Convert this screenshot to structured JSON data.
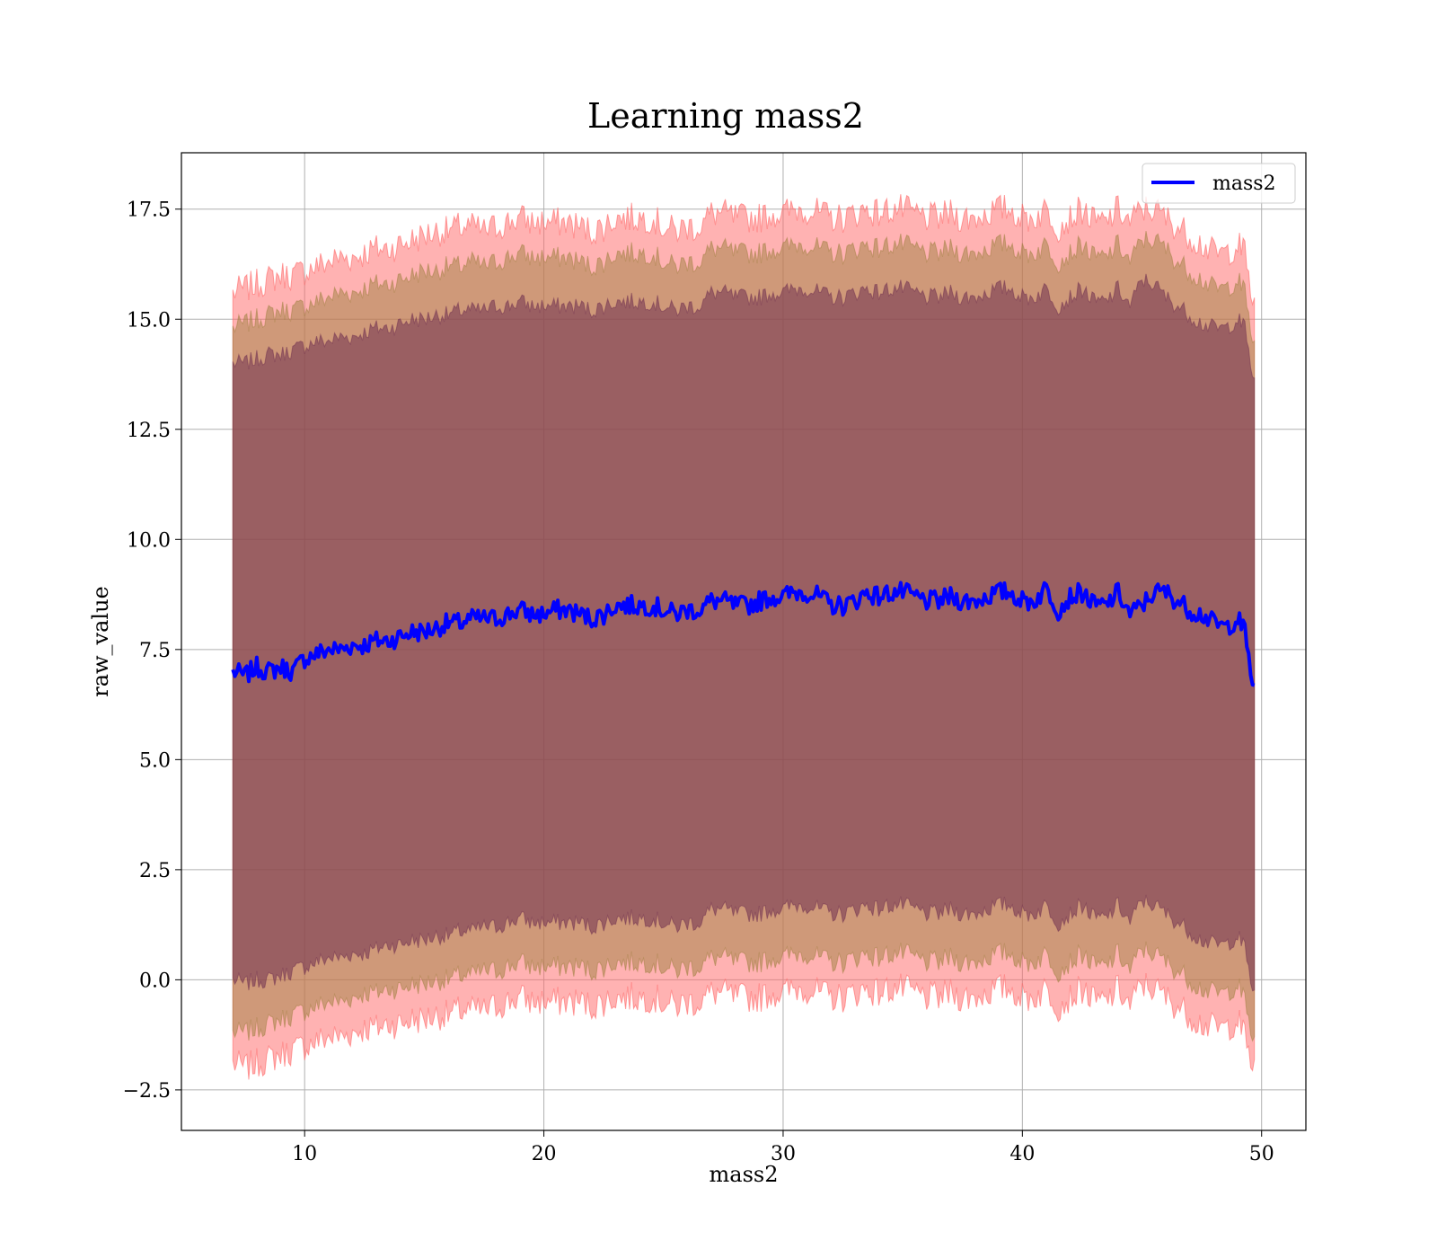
{
  "chart_data": {
    "type": "area",
    "title": "Learning mass2",
    "xlabel": "mass2",
    "ylabel": "raw_value",
    "xlim": [
      4.85,
      51.85
    ],
    "ylim": [
      -3.42,
      18.78
    ],
    "xticks": [
      10,
      20,
      30,
      40,
      50
    ],
    "xtick_labels": [
      "10",
      "20",
      "30",
      "40",
      "50"
    ],
    "yticks": [
      -2.5,
      0.0,
      2.5,
      5.0,
      7.5,
      10.0,
      12.5,
      15.0,
      17.5
    ],
    "ytick_labels": [
      "−2.5",
      "0.0",
      "2.5",
      "5.0",
      "7.5",
      "10.0",
      "12.5",
      "15.0",
      "17.5"
    ],
    "grid": true,
    "legend": {
      "position": "top-right",
      "entries": [
        "mass2"
      ]
    },
    "colors": {
      "mean_line": "#0000ff",
      "band_outer": "#ff6666",
      "band_middle": "#a08040",
      "band_inner": "#703050"
    },
    "series": [
      {
        "name": "mass2",
        "x": [
          7.0,
          7.5,
          8.0,
          8.5,
          9.0,
          9.5,
          10.0,
          10.5,
          11.0,
          11.5,
          12.0,
          12.5,
          13.0,
          13.5,
          14.0,
          14.5,
          15.0,
          15.5,
          16.0,
          16.5,
          17.0,
          17.5,
          18.0,
          18.5,
          19.0,
          19.5,
          20.0,
          20.5,
          21.0,
          21.5,
          22.0,
          22.5,
          23.0,
          23.5,
          24.0,
          24.5,
          25.0,
          25.5,
          26.0,
          26.5,
          27.0,
          27.5,
          28.0,
          28.5,
          29.0,
          29.5,
          30.0,
          30.5,
          31.0,
          31.5,
          32.0,
          32.5,
          33.0,
          33.5,
          34.0,
          34.5,
          35.0,
          35.5,
          36.0,
          36.5,
          37.0,
          37.5,
          38.0,
          38.5,
          39.0,
          39.5,
          40.0,
          40.5,
          41.0,
          41.5,
          42.0,
          42.5,
          43.0,
          43.5,
          44.0,
          44.5,
          45.0,
          45.5,
          46.0,
          46.5,
          47.0,
          47.5,
          48.0,
          48.5,
          49.0,
          49.3,
          49.7
        ],
        "mean": [
          7.0,
          6.9,
          7.1,
          7.0,
          7.1,
          7.0,
          7.3,
          7.4,
          7.5,
          7.5,
          7.6,
          7.6,
          7.7,
          7.7,
          7.8,
          7.9,
          7.9,
          8.0,
          8.1,
          8.1,
          8.2,
          8.2,
          8.2,
          8.3,
          8.4,
          8.3,
          8.3,
          8.4,
          8.4,
          8.3,
          8.2,
          8.3,
          8.5,
          8.5,
          8.5,
          8.5,
          8.4,
          8.3,
          8.4,
          8.4,
          8.6,
          8.6,
          8.5,
          8.5,
          8.6,
          8.7,
          8.7,
          8.8,
          8.8,
          8.7,
          8.5,
          8.5,
          8.6,
          8.8,
          8.7,
          8.8,
          8.8,
          8.7,
          8.6,
          8.6,
          8.7,
          8.6,
          8.6,
          8.7,
          8.8,
          8.8,
          8.6,
          8.6,
          8.9,
          8.4,
          8.7,
          8.8,
          8.5,
          8.5,
          8.8,
          8.3,
          8.5,
          8.8,
          8.8,
          8.6,
          8.4,
          8.3,
          8.1,
          8.0,
          8.2,
          7.9,
          6.5
        ],
        "outer_upper": [
          15.6,
          15.7,
          15.8,
          15.9,
          16.0,
          16.0,
          16.1,
          16.2,
          16.3,
          16.4,
          16.4,
          16.5,
          16.6,
          16.6,
          16.7,
          16.8,
          16.9,
          17.0,
          17.0,
          17.1,
          17.1,
          17.0,
          17.1,
          17.2,
          17.3,
          17.2,
          17.2,
          17.2,
          17.2,
          17.1,
          17.0,
          17.1,
          17.3,
          17.3,
          17.3,
          17.3,
          17.1,
          17.0,
          17.1,
          17.1,
          17.4,
          17.4,
          17.3,
          17.3,
          17.3,
          17.4,
          17.4,
          17.5,
          17.5,
          17.4,
          17.3,
          17.3,
          17.4,
          17.5,
          17.4,
          17.5,
          17.5,
          17.4,
          17.3,
          17.3,
          17.4,
          17.3,
          17.3,
          17.4,
          17.5,
          17.5,
          17.3,
          17.3,
          17.5,
          17.1,
          17.3,
          17.5,
          17.2,
          17.2,
          17.5,
          17.2,
          17.5,
          17.5,
          17.3,
          17.1,
          16.9,
          16.7,
          16.5,
          16.5,
          16.7,
          16.5,
          15.2
        ],
        "middle_upper": [
          14.8,
          14.9,
          15.0,
          15.1,
          15.2,
          15.2,
          15.3,
          15.4,
          15.5,
          15.6,
          15.6,
          15.7,
          15.8,
          15.8,
          15.9,
          16.0,
          16.1,
          16.1,
          16.2,
          16.2,
          16.3,
          16.2,
          16.3,
          16.4,
          16.5,
          16.4,
          16.4,
          16.4,
          16.4,
          16.3,
          16.2,
          16.3,
          16.5,
          16.5,
          16.5,
          16.5,
          16.3,
          16.2,
          16.3,
          16.3,
          16.6,
          16.6,
          16.5,
          16.5,
          16.5,
          16.6,
          16.6,
          16.7,
          16.7,
          16.6,
          16.5,
          16.5,
          16.6,
          16.7,
          16.6,
          16.7,
          16.7,
          16.6,
          16.5,
          16.5,
          16.6,
          16.5,
          16.5,
          16.6,
          16.7,
          16.7,
          16.5,
          16.5,
          16.7,
          16.3,
          16.5,
          16.7,
          16.4,
          16.4,
          16.7,
          16.3,
          16.8,
          16.8,
          16.6,
          16.3,
          16.1,
          15.9,
          15.7,
          15.7,
          15.9,
          15.6,
          14.3
        ],
        "inner_upper": [
          14.0,
          14.0,
          14.1,
          14.2,
          14.2,
          14.3,
          14.4,
          14.5,
          14.5,
          14.6,
          14.6,
          14.7,
          14.8,
          14.8,
          14.9,
          15.0,
          15.0,
          15.1,
          15.1,
          15.2,
          15.2,
          15.2,
          15.3,
          15.3,
          15.4,
          15.3,
          15.3,
          15.3,
          15.3,
          15.3,
          15.2,
          15.3,
          15.4,
          15.4,
          15.4,
          15.4,
          15.3,
          15.2,
          15.3,
          15.3,
          15.6,
          15.6,
          15.5,
          15.5,
          15.5,
          15.6,
          15.6,
          15.7,
          15.7,
          15.6,
          15.5,
          15.5,
          15.6,
          15.7,
          15.6,
          15.7,
          15.7,
          15.6,
          15.5,
          15.5,
          15.6,
          15.5,
          15.5,
          15.6,
          15.7,
          15.7,
          15.5,
          15.5,
          15.7,
          15.3,
          15.5,
          15.7,
          15.4,
          15.4,
          15.7,
          15.3,
          15.9,
          15.8,
          15.5,
          15.3,
          15.1,
          14.9,
          14.8,
          14.8,
          15.0,
          14.8,
          13.5
        ],
        "inner_lower": [
          0.0,
          -0.1,
          0.0,
          0.0,
          0.1,
          0.2,
          0.3,
          0.4,
          0.5,
          0.5,
          0.6,
          0.6,
          0.7,
          0.8,
          0.8,
          0.9,
          0.9,
          1.0,
          1.0,
          1.1,
          1.1,
          1.2,
          1.2,
          1.3,
          1.4,
          1.3,
          1.3,
          1.3,
          1.3,
          1.3,
          1.2,
          1.3,
          1.4,
          1.4,
          1.4,
          1.4,
          1.3,
          1.2,
          1.3,
          1.3,
          1.6,
          1.6,
          1.5,
          1.5,
          1.5,
          1.6,
          1.6,
          1.7,
          1.7,
          1.6,
          1.5,
          1.5,
          1.6,
          1.7,
          1.6,
          1.7,
          1.7,
          1.6,
          1.5,
          1.5,
          1.6,
          1.5,
          1.5,
          1.6,
          1.7,
          1.7,
          1.5,
          1.5,
          1.7,
          1.3,
          1.5,
          1.7,
          1.4,
          1.4,
          1.7,
          1.3,
          1.8,
          1.7,
          1.5,
          1.3,
          1.1,
          0.9,
          0.8,
          0.8,
          1.0,
          0.7,
          -0.4
        ],
        "middle_lower": [
          -1.2,
          -1.2,
          -1.1,
          -1.0,
          -0.9,
          -0.8,
          -0.7,
          -0.6,
          -0.5,
          -0.5,
          -0.4,
          -0.3,
          -0.3,
          -0.2,
          -0.2,
          -0.1,
          -0.1,
          0.0,
          0.0,
          0.1,
          0.1,
          0.2,
          0.2,
          0.3,
          0.4,
          0.3,
          0.3,
          0.3,
          0.3,
          0.3,
          0.2,
          0.3,
          0.4,
          0.4,
          0.4,
          0.4,
          0.3,
          0.2,
          0.3,
          0.3,
          0.5,
          0.5,
          0.4,
          0.4,
          0.4,
          0.5,
          0.5,
          0.6,
          0.6,
          0.5,
          0.4,
          0.4,
          0.5,
          0.6,
          0.5,
          0.6,
          0.6,
          0.5,
          0.4,
          0.4,
          0.5,
          0.4,
          0.4,
          0.5,
          0.6,
          0.6,
          0.4,
          0.4,
          0.6,
          0.2,
          0.4,
          0.6,
          0.3,
          0.3,
          0.6,
          0.2,
          0.7,
          0.6,
          0.4,
          0.2,
          0.0,
          -0.2,
          -0.3,
          -0.3,
          -0.1,
          -0.5,
          -1.5
        ],
        "outer_lower": [
          -1.9,
          -2.0,
          -1.9,
          -1.8,
          -1.7,
          -1.6,
          -1.5,
          -1.4,
          -1.3,
          -1.3,
          -1.2,
          -1.1,
          -1.1,
          -1.0,
          -1.0,
          -0.9,
          -0.9,
          -0.8,
          -0.8,
          -0.7,
          -0.7,
          -0.7,
          -0.6,
          -0.5,
          -0.4,
          -0.5,
          -0.5,
          -0.5,
          -0.5,
          -0.5,
          -0.6,
          -0.5,
          -0.4,
          -0.4,
          -0.4,
          -0.4,
          -0.5,
          -0.6,
          -0.5,
          -0.5,
          -0.3,
          -0.3,
          -0.4,
          -0.4,
          -0.4,
          -0.3,
          -0.3,
          -0.2,
          -0.2,
          -0.3,
          -0.4,
          -0.4,
          -0.3,
          -0.2,
          -0.3,
          -0.2,
          -0.2,
          -0.3,
          -0.4,
          -0.4,
          -0.3,
          -0.4,
          -0.4,
          -0.3,
          -0.2,
          -0.2,
          -0.4,
          -0.4,
          -0.2,
          -0.6,
          -0.4,
          -0.2,
          -0.5,
          -0.5,
          -0.2,
          -0.6,
          -0.1,
          -0.2,
          -0.4,
          -0.6,
          -0.8,
          -1.0,
          -1.1,
          -1.1,
          -0.9,
          -1.3,
          -2.1
        ]
      }
    ]
  }
}
